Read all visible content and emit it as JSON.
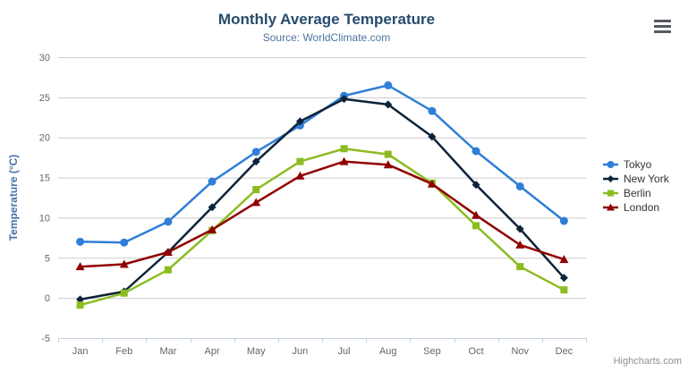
{
  "chart_data": {
    "type": "line",
    "title": "Monthly Average Temperature",
    "subtitle": "Source: WorldClimate.com",
    "xlabel": "",
    "ylabel": "Temperature (°C)",
    "categories": [
      "Jan",
      "Feb",
      "Mar",
      "Apr",
      "May",
      "Jun",
      "Jul",
      "Aug",
      "Sep",
      "Oct",
      "Nov",
      "Dec"
    ],
    "ylim": [
      -5,
      30
    ],
    "yticks": [
      -5,
      0,
      5,
      10,
      15,
      20,
      25,
      30
    ],
    "grid": true,
    "legend_position": "right",
    "series": [
      {
        "name": "Tokyo",
        "color": "#2f7ed8",
        "marker": "circle",
        "values": [
          7.0,
          6.9,
          9.5,
          14.5,
          18.2,
          21.5,
          25.2,
          26.5,
          23.3,
          18.3,
          13.9,
          9.6
        ]
      },
      {
        "name": "New York",
        "color": "#0d233a",
        "marker": "diamond",
        "values": [
          -0.2,
          0.8,
          5.7,
          11.3,
          17.0,
          22.0,
          24.8,
          24.1,
          20.1,
          14.1,
          8.6,
          2.5
        ]
      },
      {
        "name": "Berlin",
        "color": "#8bbc21",
        "marker": "square",
        "values": [
          -0.9,
          0.6,
          3.5,
          8.4,
          13.5,
          17.0,
          18.6,
          17.9,
          14.3,
          9.0,
          3.9,
          1.0
        ]
      },
      {
        "name": "London",
        "color": "#910000",
        "marker": "triangle",
        "values": [
          3.9,
          4.2,
          5.7,
          8.5,
          11.9,
          15.2,
          17.0,
          16.6,
          14.2,
          10.3,
          6.6,
          4.8
        ]
      }
    ],
    "colors": {
      "grid_line": "#cccccc",
      "axis_line": "#c0d0e0",
      "tick_label": "#666666",
      "title": "#274b6d",
      "subtitle": "#4d759e",
      "yaxis_title": "#4572a7",
      "legend_text": "#333333"
    }
  },
  "icons": {
    "context_menu": "hamburger-menu-icon"
  },
  "credits": "Highcharts.com"
}
